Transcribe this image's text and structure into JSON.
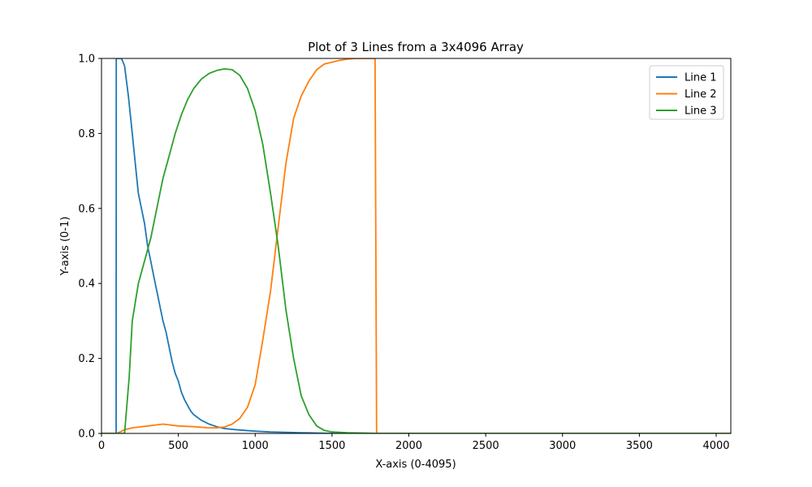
{
  "chart_data": {
    "type": "line",
    "title": "Plot of 3 Lines from a 3x4096 Array",
    "xlabel": "X-axis (0-4095)",
    "ylabel": "Y-axis (0-1)",
    "xlim": [
      0,
      4095
    ],
    "ylim": [
      0,
      1
    ],
    "xticks": [
      0,
      500,
      1000,
      1500,
      2000,
      2500,
      3000,
      3500,
      4000
    ],
    "yticks": [
      0.0,
      0.2,
      0.4,
      0.6,
      0.8,
      1.0
    ],
    "xtick_labels": [
      "0",
      "500",
      "1000",
      "1500",
      "2000",
      "2500",
      "3000",
      "3500",
      "4000"
    ],
    "ytick_labels": [
      "0.0",
      "0.2",
      "0.4",
      "0.6",
      "0.8",
      "1.0"
    ],
    "grid": false,
    "legend_position": "top-right",
    "series": [
      {
        "name": "Line 1",
        "color": "#1f77b4",
        "x": [
          0,
          95,
          96,
          100,
          130,
          150,
          175,
          200,
          220,
          240,
          260,
          280,
          300,
          320,
          340,
          360,
          380,
          400,
          420,
          440,
          460,
          480,
          500,
          520,
          540,
          560,
          580,
          600,
          650,
          700,
          750,
          800,
          900,
          1000,
          1100,
          1200,
          1300,
          1400,
          1500,
          1600,
          2000,
          4095
        ],
        "y": [
          0.0,
          0.0,
          1.0,
          1.0,
          1.0,
          0.98,
          0.9,
          0.8,
          0.72,
          0.64,
          0.6,
          0.56,
          0.5,
          0.46,
          0.42,
          0.38,
          0.34,
          0.3,
          0.27,
          0.23,
          0.19,
          0.16,
          0.14,
          0.11,
          0.09,
          0.075,
          0.06,
          0.05,
          0.035,
          0.025,
          0.018,
          0.013,
          0.009,
          0.006,
          0.004,
          0.003,
          0.002,
          0.001,
          0.0,
          0.0,
          0.0,
          0.0
        ]
      },
      {
        "name": "Line 2",
        "color": "#ff7f0e",
        "x": [
          0,
          100,
          150,
          200,
          300,
          400,
          500,
          600,
          700,
          750,
          800,
          850,
          900,
          950,
          1000,
          1050,
          1100,
          1150,
          1200,
          1250,
          1300,
          1350,
          1400,
          1450,
          1500,
          1550,
          1600,
          1650,
          1670,
          1780,
          1790,
          2000,
          4095
        ],
        "y": [
          0.0,
          0.0,
          0.01,
          0.015,
          0.02,
          0.025,
          0.02,
          0.018,
          0.015,
          0.015,
          0.017,
          0.025,
          0.04,
          0.07,
          0.13,
          0.25,
          0.38,
          0.55,
          0.72,
          0.84,
          0.9,
          0.94,
          0.97,
          0.985,
          0.99,
          0.995,
          0.998,
          1.0,
          1.0,
          1.0,
          0.0,
          0.0,
          0.0
        ]
      },
      {
        "name": "Line 3",
        "color": "#2ca02c",
        "x": [
          0,
          150,
          180,
          200,
          240,
          280,
          320,
          360,
          400,
          440,
          480,
          520,
          560,
          600,
          650,
          700,
          750,
          800,
          850,
          900,
          950,
          1000,
          1050,
          1100,
          1150,
          1200,
          1250,
          1300,
          1350,
          1400,
          1450,
          1500,
          1600,
          1700,
          1800,
          2000,
          4095
        ],
        "y": [
          0.0,
          0.0,
          0.15,
          0.3,
          0.4,
          0.46,
          0.52,
          0.6,
          0.68,
          0.74,
          0.8,
          0.85,
          0.89,
          0.92,
          0.945,
          0.96,
          0.968,
          0.972,
          0.97,
          0.955,
          0.92,
          0.86,
          0.77,
          0.64,
          0.5,
          0.33,
          0.2,
          0.1,
          0.05,
          0.02,
          0.008,
          0.004,
          0.002,
          0.001,
          0.0,
          0.0,
          0.0
        ]
      }
    ]
  }
}
